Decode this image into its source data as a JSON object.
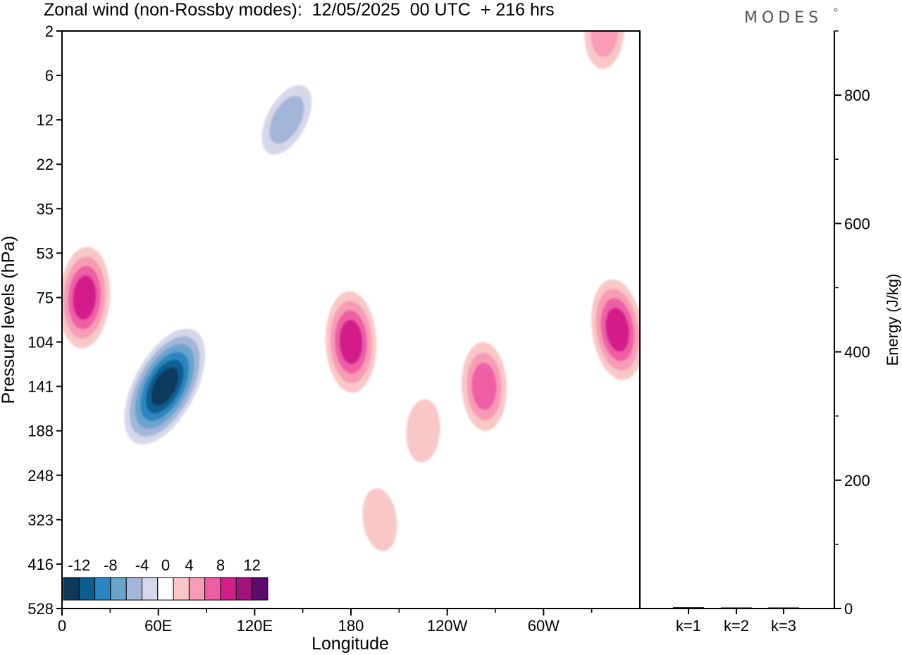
{
  "title": "Zonal wind (non-Rossby modes):  12/05/2025  00 UTC  + 216 hrs",
  "logo": "MODES",
  "chart_data": [
    {
      "type": "heatmap",
      "variable": "Zonal wind (non-Rossby modes)",
      "xlabel": "Longitude",
      "ylabel": "Pressure levels (hPa)",
      "x_ticks": [
        "0",
        "60E",
        "120E",
        "180",
        "120W",
        "60W"
      ],
      "x_tick_degrees": [
        0,
        60,
        120,
        180,
        240,
        300
      ],
      "x_range_degrees": [
        0,
        360
      ],
      "y_ticks": [
        "2",
        "6",
        "12",
        "22",
        "35",
        "53",
        "75",
        "104",
        "141",
        "188",
        "248",
        "323",
        "416",
        "528"
      ],
      "y_scale": "model levels (non-linear)",
      "colorbar": {
        "labels": [
          "-12",
          "-8",
          "-4",
          "0",
          "4",
          "8",
          "12"
        ],
        "levels": [
          -14,
          -12,
          -10,
          -8,
          -6,
          -4,
          -2,
          2,
          4,
          6,
          8,
          10,
          12,
          14
        ],
        "colors": [
          "#0b3a5e",
          "#0a5f8f",
          "#2b86c0",
          "#6aa3cc",
          "#a2b6d8",
          "#d5d7ea",
          "#ffffff",
          "#f9c7c6",
          "#f79cb4",
          "#ee5ea5",
          "#d31f8a",
          "#a3117a",
          "#5e0a6c"
        ]
      },
      "features": [
        {
          "lon": 64,
          "level": "141",
          "value": -13
        },
        {
          "lon": 180,
          "level": "104",
          "value": 8
        },
        {
          "lon": 14,
          "level": "75",
          "value": 8
        },
        {
          "lon": 346,
          "level": "95",
          "value": 9
        },
        {
          "lon": 263,
          "level": "141",
          "value": 6
        },
        {
          "lon": 225,
          "level": "188",
          "value": 3
        },
        {
          "lon": 198,
          "level": "323",
          "value": 3
        },
        {
          "lon": 140,
          "level": "12",
          "value": -5
        },
        {
          "lon": 338,
          "level": "2",
          "value": 5
        }
      ]
    },
    {
      "type": "bar",
      "categories": [
        "k=1",
        "k=2",
        "k=3"
      ],
      "values": [
        2,
        1,
        1
      ],
      "ylabel": "Energy (J/kg)",
      "y_ticks": [
        "0",
        "200",
        "400",
        "600",
        "800"
      ],
      "ylim": [
        0,
        900
      ]
    }
  ]
}
